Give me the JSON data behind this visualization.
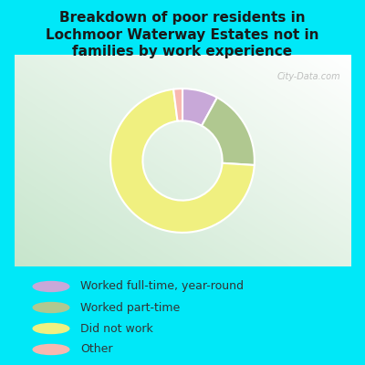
{
  "title": "Breakdown of poor residents in\nLochmoor Waterway Estates not in\nfamilies by work experience",
  "title_fontsize": 11,
  "title_fontweight": "bold",
  "slices": [
    {
      "label": "Worked full-time, year-round",
      "value": 8,
      "color": "#c8a8d8"
    },
    {
      "label": "Worked part-time",
      "value": 18,
      "color": "#b0c890"
    },
    {
      "label": "Did not work",
      "value": 72,
      "color": "#f0f080"
    },
    {
      "label": "Other",
      "value": 2,
      "color": "#f8b8b0"
    }
  ],
  "background_color": "#00e8f8",
  "watermark": "City-Data.com",
  "legend_fontsize": 9,
  "figsize": [
    4.0,
    4.0
  ],
  "dpi": 100
}
